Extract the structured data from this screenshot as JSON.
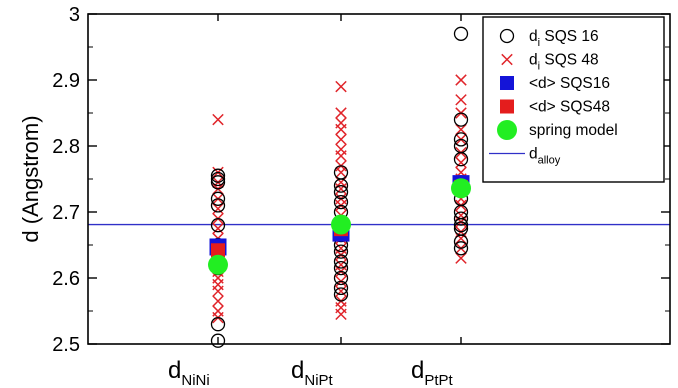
{
  "chart_data": {
    "type": "scatter",
    "title": "",
    "ylabel": "d (Angstrom)",
    "ylim": [
      2.5,
      3.0
    ],
    "yticks": [
      {
        "value": 2.5,
        "label": "2.5"
      },
      {
        "value": 2.6,
        "label": "2.6"
      },
      {
        "value": 2.7,
        "label": "2.7"
      },
      {
        "value": 2.8,
        "label": "2.8"
      },
      {
        "value": 2.9,
        "label": "2.9"
      },
      {
        "value": 3.0,
        "label": "3"
      }
    ],
    "categories": [
      {
        "main": "d",
        "sub": "NiNi"
      },
      {
        "main": "d",
        "sub": "NiPt"
      },
      {
        "main": "d",
        "sub": "PtPt"
      }
    ],
    "d_alloy": 2.681,
    "series": [
      {
        "name": "d_i SQS 16",
        "legend": {
          "main": "d",
          "sub": "i",
          "rest": " SQS   16"
        },
        "marker": "open-circle",
        "color": "#000000",
        "values": [
          [
            2.505,
            2.53,
            2.615,
            2.64,
            2.65,
            2.68,
            2.71,
            2.72,
            2.745,
            2.75,
            2.755
          ],
          [
            2.575,
            2.585,
            2.6,
            2.615,
            2.625,
            2.64,
            2.65,
            2.665,
            2.68,
            2.7,
            2.715,
            2.73,
            2.74,
            2.76
          ],
          [
            2.645,
            2.655,
            2.675,
            2.68,
            2.69,
            2.7,
            2.72,
            2.745,
            2.78,
            2.8,
            2.81,
            2.84,
            2.97
          ]
        ]
      },
      {
        "name": "d_i SQS 48",
        "legend": {
          "main": "d",
          "sub": "i",
          "rest": " SQS   48"
        },
        "marker": "x",
        "color": "#e0242a",
        "values": [
          [
            2.54,
            2.55,
            2.565,
            2.58,
            2.59,
            2.6,
            2.61,
            2.625,
            2.64,
            2.65,
            2.66,
            2.675,
            2.69,
            2.705,
            2.72,
            2.735,
            2.745,
            2.76,
            2.84
          ],
          [
            2.545,
            2.555,
            2.565,
            2.58,
            2.595,
            2.61,
            2.62,
            2.635,
            2.645,
            2.66,
            2.67,
            2.685,
            2.695,
            2.71,
            2.72,
            2.735,
            2.745,
            2.76,
            2.77,
            2.785,
            2.795,
            2.81,
            2.825,
            2.835,
            2.85,
            2.89
          ],
          [
            2.63,
            2.645,
            2.66,
            2.67,
            2.685,
            2.695,
            2.71,
            2.72,
            2.735,
            2.75,
            2.76,
            2.775,
            2.79,
            2.81,
            2.825,
            2.85,
            2.87,
            2.9
          ]
        ]
      },
      {
        "name": "<d> SQS16",
        "legend": {
          "main": "<d> SQS16",
          "sub": "",
          "rest": ""
        },
        "marker": "square",
        "color": "#1414d8",
        "values": [
          2.647,
          2.668,
          2.743
        ]
      },
      {
        "name": "<d> SQS48",
        "legend": {
          "main": "<d> SQS48",
          "sub": "",
          "rest": ""
        },
        "marker": "square",
        "color": "#e41d1d",
        "values": [
          2.642,
          2.674,
          2.738
        ]
      },
      {
        "name": "spring model",
        "legend": {
          "main": "spring model",
          "sub": "",
          "rest": ""
        },
        "marker": "filled-circle",
        "color": "#22ee22",
        "values": [
          2.62,
          2.681,
          2.736
        ]
      }
    ],
    "alloy_line": {
      "name": "d_alloy",
      "legend": {
        "main": "d",
        "sub": "alloy",
        "rest": ""
      },
      "color": "#3030c8"
    },
    "grid": false,
    "legend_position": "top-right"
  }
}
